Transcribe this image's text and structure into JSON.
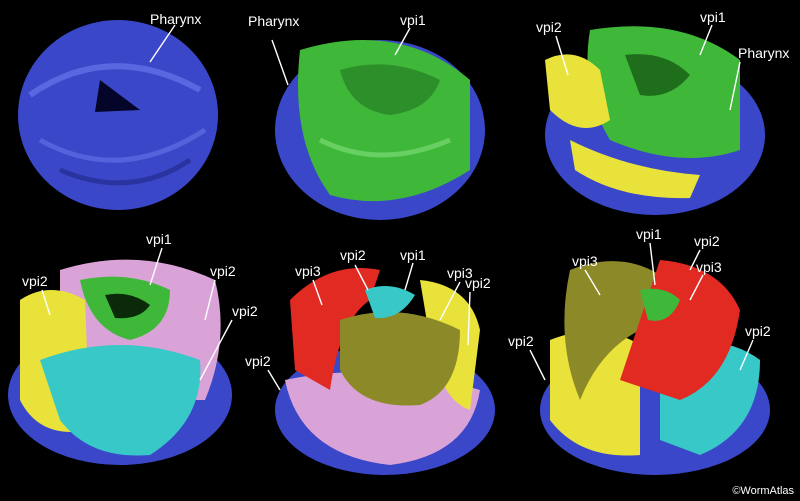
{
  "colors": {
    "background": "#000000",
    "pharynx": "#3a47c8",
    "vpi1": "#3fb83a",
    "vpi2": "#e9e23a",
    "vpi2_pink": "#d9a3d8",
    "vpi2_cyan": "#38c8c8",
    "vpi3": "#e02a22",
    "vpi3_olive": "#8c8a28",
    "label_text": "#ffffff"
  },
  "panels": [
    {
      "labels": [
        "Pharynx"
      ]
    },
    {
      "labels": [
        "Pharynx",
        "vpi1"
      ]
    },
    {
      "labels": [
        "vpi2",
        "vpi1",
        "Pharynx"
      ]
    },
    {
      "labels": [
        "vpi2",
        "vpi1",
        "vpi2",
        "vpi2"
      ]
    },
    {
      "labels": [
        "vpi2",
        "vpi1",
        "vpi3",
        "vpi3",
        "vpi2",
        "vpi2"
      ]
    },
    {
      "labels": [
        "vpi1",
        "vpi2",
        "vpi3",
        "vpi3",
        "vpi2",
        "vpi2"
      ]
    }
  ],
  "credit": "©WormAtlas"
}
